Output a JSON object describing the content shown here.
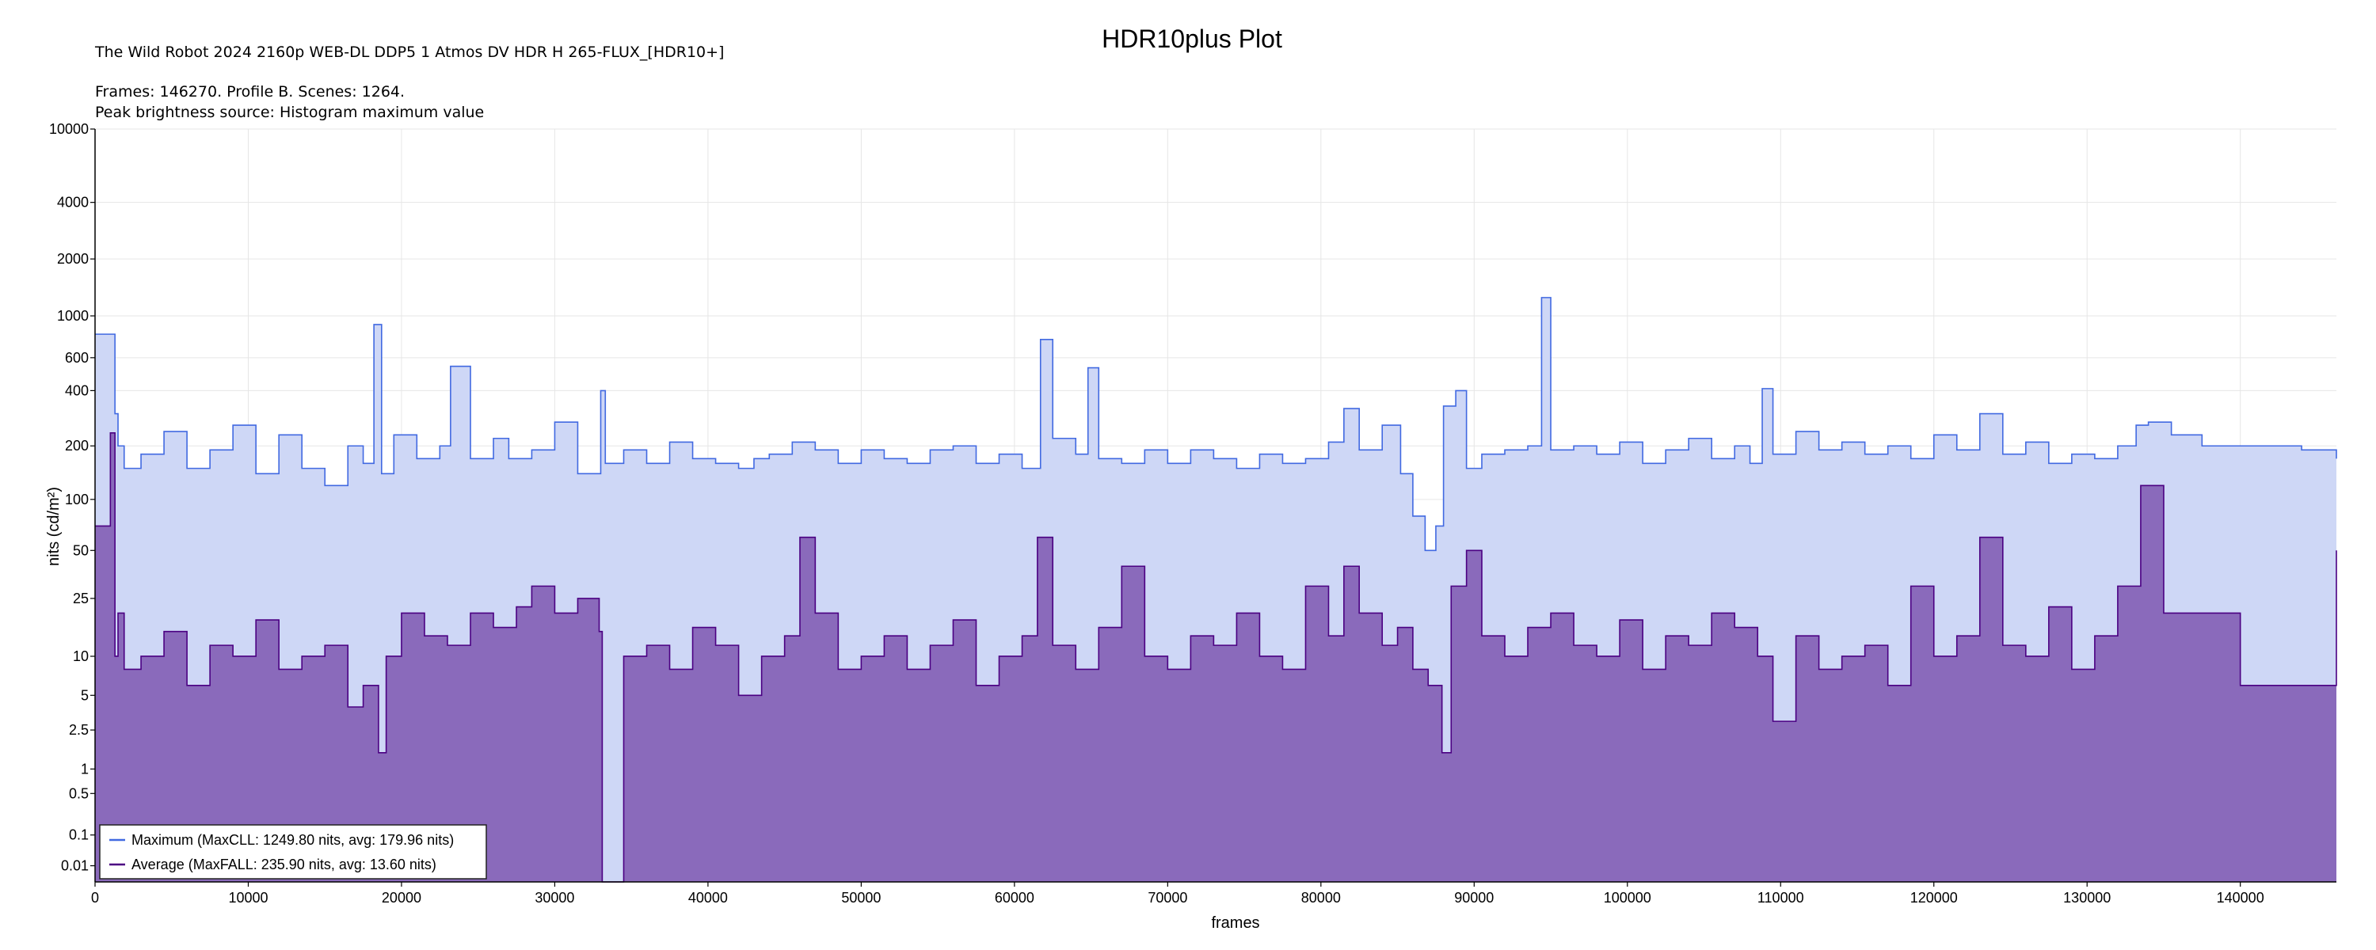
{
  "chart_data": {
    "type": "area",
    "title": "HDR10plus Plot",
    "subtitle": "The Wild Robot 2024 2160p WEB-DL DDP5 1 Atmos DV HDR H 265-FLUX_[HDR10+]",
    "info_lines": [
      "Frames: 146270. Profile B. Scenes: 1264.",
      "Peak brightness source: Histogram maximum value"
    ],
    "xlabel": "frames",
    "ylabel": "nits (cd/m²)",
    "xlim": [
      0,
      146270
    ],
    "x_ticks": [
      0,
      10000,
      20000,
      30000,
      40000,
      50000,
      60000,
      70000,
      80000,
      90000,
      100000,
      110000,
      120000,
      130000,
      140000
    ],
    "x_tick_labels": [
      "0",
      "10000",
      "20000",
      "30000",
      "40000",
      "50000",
      "60000",
      "70000",
      "80000",
      "90000",
      "100000",
      "110000",
      "120000",
      "130000",
      "140000"
    ],
    "y_scale": "PQ (perceptual)",
    "ylim": [
      0,
      10000
    ],
    "y_ticks": [
      0.01,
      0.1,
      0.5,
      1,
      2.5,
      5,
      10,
      25,
      50,
      100,
      200,
      400,
      600,
      1000,
      2000,
      4000,
      10000
    ],
    "y_tick_labels": [
      "0.01",
      "0.1",
      "0.5",
      "1",
      "2.5",
      "5",
      "10",
      "25",
      "50",
      "100",
      "200",
      "400",
      "600",
      "1000",
      "2000",
      "4000",
      "10000"
    ],
    "grid": true,
    "legend_position": "bottom-left",
    "series": [
      {
        "name": "Maximum (MaxCLL: 1249.80 nits, avg: 179.96 nits)",
        "color": "#4169e1",
        "fill": "#ced7f6",
        "x": [
          0,
          1300,
          1500,
          1900,
          3000,
          4500,
          6000,
          7500,
          9000,
          10500,
          12000,
          13500,
          15000,
          16500,
          17500,
          18200,
          18700,
          19500,
          21000,
          22500,
          23200,
          24500,
          26000,
          27000,
          28500,
          30000,
          31500,
          33000,
          33300,
          34500,
          36000,
          37500,
          39000,
          40500,
          42000,
          43000,
          44000,
          45500,
          47000,
          48500,
          50000,
          51500,
          53000,
          54500,
          56000,
          57500,
          59000,
          60500,
          61700,
          62500,
          64000,
          64800,
          65500,
          67000,
          68500,
          70000,
          71500,
          73000,
          74500,
          76000,
          77500,
          79000,
          80500,
          81500,
          82500,
          84000,
          85200,
          86000,
          86800,
          87500,
          88000,
          88800,
          89500,
          90500,
          92000,
          93500,
          94400,
          95000,
          96500,
          98000,
          99500,
          101000,
          102500,
          104000,
          105500,
          107000,
          108000,
          108800,
          109500,
          111000,
          112500,
          114000,
          115500,
          117000,
          118500,
          120000,
          121500,
          123000,
          124500,
          126000,
          127500,
          129000,
          130500,
          132000,
          133200,
          134000,
          135500,
          137500,
          140000,
          142000,
          144000,
          146270
        ],
        "y": [
          800,
          300,
          200,
          150,
          180,
          240,
          150,
          190,
          260,
          140,
          230,
          150,
          120,
          200,
          160,
          900,
          140,
          230,
          170,
          200,
          540,
          170,
          220,
          170,
          190,
          270,
          140,
          400,
          160,
          190,
          160,
          210,
          170,
          160,
          150,
          170,
          180,
          210,
          190,
          160,
          190,
          170,
          160,
          190,
          200,
          160,
          180,
          150,
          750,
          220,
          180,
          530,
          170,
          160,
          190,
          160,
          190,
          170,
          150,
          180,
          160,
          170,
          210,
          320,
          190,
          260,
          140,
          80,
          50,
          70,
          330,
          400,
          150,
          180,
          190,
          200,
          1249.8,
          190,
          200,
          180,
          210,
          160,
          190,
          220,
          170,
          200,
          160,
          410,
          180,
          240,
          190,
          210,
          180,
          200,
          170,
          230,
          190,
          300,
          180,
          210,
          160,
          180,
          170,
          200,
          260,
          270,
          230,
          200,
          200,
          200,
          190,
          170
        ]
      },
      {
        "name": "Average (MaxFALL: 235.90 nits, avg: 13.60 nits)",
        "color": "#4b0082",
        "fill": "#8a6abb",
        "x": [
          0,
          1000,
          1300,
          1500,
          1900,
          3000,
          4500,
          6000,
          7500,
          9000,
          10500,
          12000,
          13500,
          15000,
          16500,
          17500,
          18500,
          19000,
          20000,
          21500,
          23000,
          24500,
          26000,
          27500,
          28500,
          30000,
          31500,
          32900,
          33100,
          34500,
          36000,
          37500,
          39000,
          40500,
          42000,
          43500,
          45000,
          46000,
          47000,
          48500,
          50000,
          51500,
          53000,
          54500,
          56000,
          57500,
          59000,
          60500,
          61500,
          62500,
          64000,
          65500,
          67000,
          68500,
          70000,
          71500,
          73000,
          74500,
          76000,
          77500,
          79000,
          80500,
          81500,
          82500,
          84000,
          85000,
          86000,
          87000,
          87900,
          88500,
          89500,
          90500,
          92000,
          93500,
          95000,
          96500,
          98000,
          99500,
          101000,
          102500,
          104000,
          105500,
          107000,
          108500,
          109500,
          111000,
          112500,
          114000,
          115500,
          117000,
          118500,
          120000,
          121500,
          123000,
          124500,
          126000,
          127500,
          129000,
          130500,
          132000,
          133500,
          135000,
          136500,
          138500,
          140000,
          142000,
          144000,
          146000,
          146270
        ],
        "y": [
          70,
          235.9,
          10,
          20,
          8,
          10,
          15,
          6,
          12,
          10,
          18,
          8,
          10,
          12,
          4,
          6,
          1.5,
          10,
          20,
          14,
          12,
          20,
          16,
          22,
          30,
          20,
          25,
          15,
          0,
          10,
          12,
          8,
          16,
          12,
          5,
          10,
          14,
          60,
          20,
          8,
          10,
          14,
          8,
          12,
          18,
          6,
          10,
          14,
          60,
          12,
          8,
          16,
          40,
          10,
          8,
          14,
          12,
          20,
          10,
          8,
          30,
          14,
          40,
          20,
          12,
          16,
          8,
          6,
          1.5,
          30,
          50,
          14,
          10,
          16,
          20,
          12,
          10,
          18,
          8,
          14,
          12,
          20,
          16,
          10,
          3,
          14,
          8,
          10,
          12,
          6,
          30,
          10,
          14,
          60,
          12,
          10,
          22,
          8,
          14,
          30,
          120,
          20,
          20,
          20,
          6,
          6,
          6,
          6,
          50
        ]
      }
    ]
  }
}
